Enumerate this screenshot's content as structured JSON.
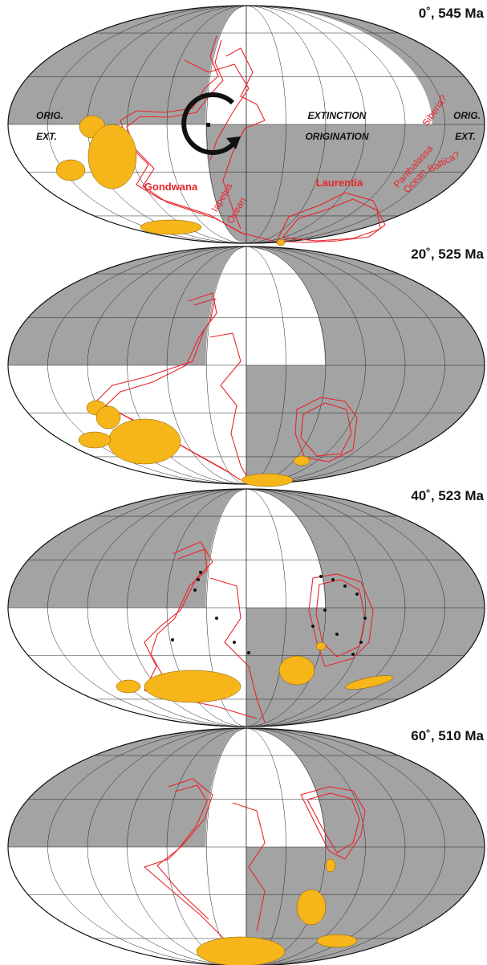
{
  "panels": [
    {
      "label": "0˚, 545 Ma",
      "annotations": {
        "left_orig": "ORIG.",
        "left_ext": "EXT.",
        "extinction": "EXTINCTION",
        "origination": "ORIGINATION",
        "right_orig": "ORIG.",
        "right_ext": "EXT.",
        "siberia": "Siberia?",
        "baltica": "Baltica?",
        "panthalassa": "Panthalassa",
        "panthalassa_ocean": "Ocean",
        "laurentia": "Laurentia",
        "gondwana": "Gondwana",
        "iapetus": "Iapetus",
        "iapetus_ocean": "Ocean"
      }
    },
    {
      "label": "20˚, 525 Ma"
    },
    {
      "label": "40˚, 523 Ma"
    },
    {
      "label": "60˚, 510 Ma"
    }
  ]
}
